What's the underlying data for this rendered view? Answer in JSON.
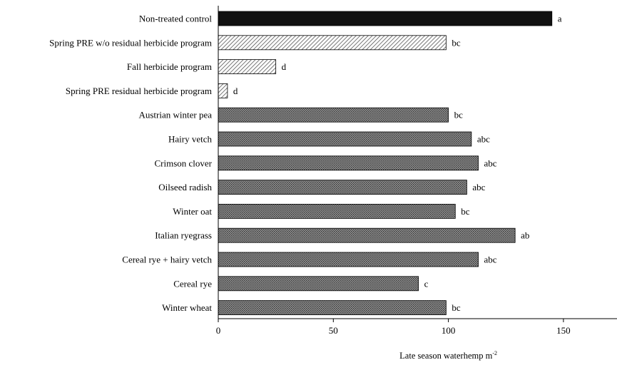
{
  "chart_data": {
    "type": "bar",
    "orientation": "horizontal",
    "title": "",
    "xlabel": "Late season waterhemp m",
    "xlabel_superscript": "-2",
    "ylabel": "",
    "xlim": [
      0,
      170
    ],
    "xticks": [
      "0",
      "50",
      "100",
      "150"
    ],
    "grid": false,
    "legend": "none",
    "categories": [
      "Non-treated control",
      "Spring PRE w/o residual herbicide program",
      "Fall herbicide program",
      "Spring PRE residual herbicide program",
      "Austrian winter pea",
      "Hairy vetch",
      "Crimson clover",
      "Oilseed radish",
      "Winter oat",
      "Italian ryegrass",
      "Cereal rye + hairy vetch",
      "Cereal rye",
      "Winter wheat"
    ],
    "values": [
      145,
      99,
      25,
      4,
      100,
      110,
      113,
      108,
      103,
      129,
      113,
      87,
      99
    ],
    "letters": [
      "a",
      "bc",
      "d",
      "d",
      "bc",
      "abc",
      "abc",
      "abc",
      "bc",
      "ab",
      "abc",
      "c",
      "bc"
    ],
    "fills": [
      "solid",
      "diagonal",
      "diagonal",
      "diagonal",
      "dotted",
      "dotted",
      "dotted",
      "dotted",
      "dotted",
      "dotted",
      "dotted",
      "dotted",
      "dotted"
    ],
    "colors": {
      "solid": "#111111",
      "dotted": "#5a5a5a",
      "diagonal_line": "#555555",
      "axis": "#000000"
    }
  }
}
